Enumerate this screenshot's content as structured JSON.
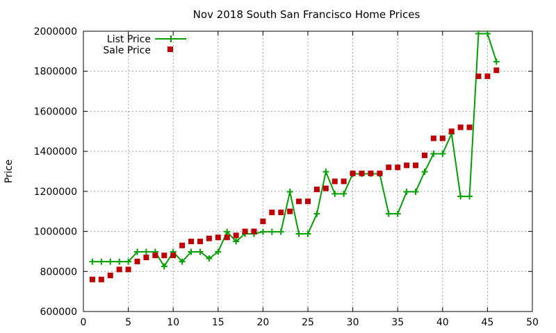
{
  "chart_data": {
    "type": "line",
    "title": "Nov 2018 South San Francisco Home Prices",
    "xlabel": "",
    "ylabel": "Price",
    "xlim": [
      0,
      50
    ],
    "ylim": [
      600000,
      2000000
    ],
    "xticks": [
      0,
      5,
      10,
      15,
      20,
      25,
      30,
      35,
      40,
      45,
      50
    ],
    "yticks": [
      600000,
      800000,
      1000000,
      1200000,
      1400000,
      1600000,
      1800000,
      2000000
    ],
    "grid": true,
    "legend": "top-left",
    "series": [
      {
        "name": "List Price",
        "style": "line-plus",
        "color": "#00a000",
        "x": [
          1,
          2,
          3,
          4,
          5,
          6,
          7,
          8,
          9,
          10,
          11,
          12,
          13,
          14,
          15,
          16,
          17,
          18,
          19,
          20,
          21,
          22,
          23,
          24,
          25,
          26,
          27,
          28,
          29,
          30,
          31,
          32,
          33,
          34,
          35,
          36,
          37,
          38,
          39,
          40,
          41,
          42,
          43,
          44,
          45,
          46
        ],
        "y": [
          849000,
          849000,
          849000,
          849000,
          849000,
          898000,
          898000,
          898000,
          825000,
          898000,
          849000,
          898000,
          898000,
          865000,
          898000,
          998000,
          950000,
          988000,
          988000,
          998000,
          998000,
          998000,
          1198000,
          988000,
          988000,
          1088000,
          1298000,
          1188000,
          1188000,
          1288000,
          1288000,
          1288000,
          1288000,
          1088000,
          1088000,
          1198000,
          1198000,
          1298000,
          1388000,
          1388000,
          1488000,
          1175000,
          1175000,
          1988000,
          1988000,
          1848000
        ]
      },
      {
        "name": "Sale Price",
        "style": "square-points",
        "color": "#c00000",
        "x": [
          1,
          2,
          3,
          4,
          5,
          6,
          7,
          8,
          9,
          10,
          11,
          12,
          13,
          14,
          15,
          16,
          17,
          18,
          19,
          20,
          21,
          22,
          23,
          24,
          25,
          26,
          27,
          28,
          29,
          30,
          31,
          32,
          33,
          34,
          35,
          36,
          37,
          38,
          39,
          40,
          41,
          42,
          43,
          44,
          45,
          46
        ],
        "y": [
          760000,
          760000,
          780000,
          810000,
          810000,
          850000,
          870000,
          880000,
          880000,
          880000,
          930000,
          950000,
          950000,
          965000,
          970000,
          970000,
          980000,
          1000000,
          1000000,
          1050000,
          1095000,
          1095000,
          1100000,
          1150000,
          1150000,
          1210000,
          1215000,
          1250000,
          1250000,
          1290000,
          1290000,
          1290000,
          1290000,
          1320000,
          1320000,
          1330000,
          1330000,
          1380000,
          1465000,
          1465000,
          1500000,
          1520000,
          1520000,
          1775000,
          1775000,
          1805000
        ]
      }
    ]
  }
}
